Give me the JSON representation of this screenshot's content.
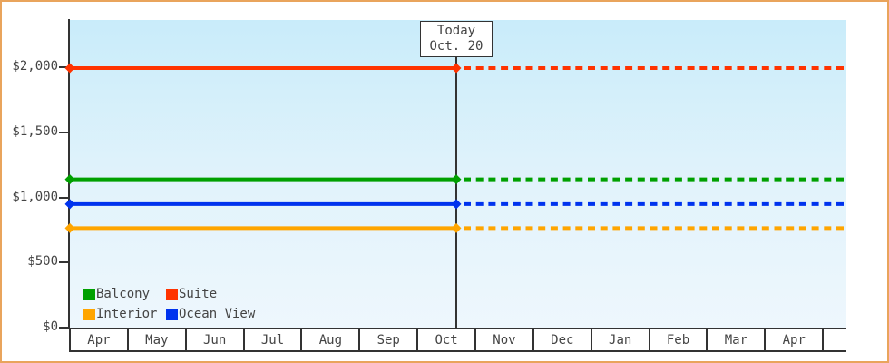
{
  "window": {
    "frame_border_color": "#E9A45C",
    "axis_color": "#333333",
    "text_color": "#444444",
    "plot_bg_top": "#c9ecfa",
    "plot_bg_bottom": "#eef7fd"
  },
  "today_box": {
    "line1": "Today",
    "line2": "Oct. 20"
  },
  "chart_data": {
    "type": "line",
    "title": "",
    "xlabel": "",
    "ylabel": "",
    "x_axis": {
      "categories": [
        "Apr",
        "May",
        "Jun",
        "Jul",
        "Aug",
        "Sep",
        "Oct",
        "Nov",
        "Dec",
        "Jan",
        "Feb",
        "Mar",
        "Apr"
      ]
    },
    "y_axis": {
      "tick_values": [
        2000,
        1500,
        1000,
        500,
        0
      ],
      "tick_labels": [
        "$2,000",
        "$1,500",
        "$1,000",
        "$500",
        "$0"
      ],
      "ylim": [
        0,
        2365
      ],
      "grid": false
    },
    "today_marker": {
      "label": "Today",
      "date": "Oct. 20",
      "month": "Oct",
      "day_of_month": 20,
      "line_style": "solid before today, dashed projection after today",
      "marker_shape": "diamond"
    },
    "series": [
      {
        "name": "Suite",
        "color": "#FF3300",
        "value": 1995,
        "values_constant": true
      },
      {
        "name": "Balcony",
        "color": "#00A000",
        "value": 1140,
        "values_constant": true
      },
      {
        "name": "Ocean View",
        "color": "#0033EE",
        "value": 950,
        "values_constant": true
      },
      {
        "name": "Interior",
        "color": "#FFA500",
        "value": 765,
        "values_constant": true
      }
    ],
    "legend": {
      "position": "bottom-left inside plot",
      "items": [
        {
          "label": "Balcony",
          "color": "#00A000"
        },
        {
          "label": "Suite",
          "color": "#FF3300"
        },
        {
          "label": "Interior",
          "color": "#FFA500"
        },
        {
          "label": "Ocean View",
          "color": "#0033EE"
        }
      ]
    }
  }
}
